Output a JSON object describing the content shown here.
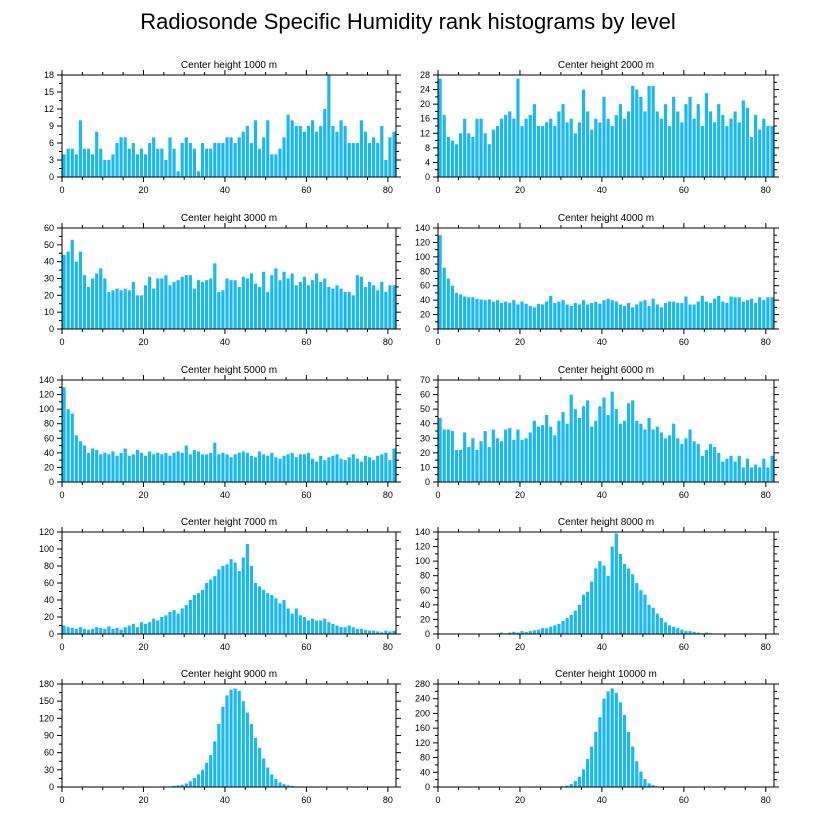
{
  "title": "Radiosonde Specific Humidity rank histograms by level",
  "colors": {
    "bar": "#1ab8f0",
    "axis": "#000000",
    "background": "#ffffff"
  },
  "chart_data": [
    {
      "type": "bar",
      "title": "Center height 1000 m",
      "xlim": [
        0,
        82
      ],
      "ylim": [
        0,
        18
      ],
      "xticks": [
        0,
        20,
        40,
        60,
        80
      ],
      "yticks": [
        0,
        3,
        6,
        9,
        12,
        15,
        18
      ],
      "values": [
        4,
        5,
        5,
        4,
        10,
        5,
        5,
        4,
        8,
        5,
        3,
        3,
        4,
        6,
        7,
        7,
        5,
        6,
        4,
        5,
        4,
        6,
        7,
        5,
        5,
        3,
        7,
        5,
        1,
        6,
        7,
        6,
        5,
        1,
        6,
        5,
        5,
        6,
        6,
        6,
        7,
        7,
        6,
        7,
        8,
        9,
        6,
        10,
        5,
        7,
        10,
        4,
        4,
        5,
        7,
        11,
        10,
        9,
        9,
        8,
        9,
        10,
        8,
        9,
        12,
        18,
        9,
        8,
        10,
        9,
        6,
        6,
        6,
        10,
        8,
        6,
        7,
        6,
        9,
        3,
        7,
        8
      ],
      "xvalues_note": "bins 0-81"
    },
    {
      "type": "bar",
      "title": "Center height 2000 m",
      "xlim": [
        0,
        82
      ],
      "ylim": [
        0,
        28
      ],
      "xticks": [
        0,
        20,
        40,
        60,
        80
      ],
      "yticks": [
        0,
        4,
        8,
        12,
        16,
        20,
        24,
        28
      ],
      "values": [
        27,
        17,
        11,
        10,
        9,
        12,
        16,
        12,
        11,
        16,
        16,
        12,
        9,
        13,
        14,
        16,
        17,
        18,
        16,
        27,
        14,
        16,
        17,
        20,
        14,
        14,
        15,
        16,
        14,
        18,
        20,
        15,
        16,
        12,
        15,
        24,
        18,
        13,
        16,
        15,
        22,
        16,
        14,
        17,
        20,
        16,
        18,
        25,
        24,
        22,
        18,
        25,
        25,
        18,
        16,
        20,
        14,
        22,
        18,
        15,
        20,
        22,
        16,
        20,
        14,
        23,
        18,
        15,
        20,
        17,
        14,
        16,
        18,
        15,
        21,
        19,
        11,
        17,
        13,
        16,
        14,
        14
      ],
      "xvalues_note": "bins 0-81"
    },
    {
      "type": "bar",
      "title": "Center height 3000 m",
      "xlim": [
        0,
        82
      ],
      "ylim": [
        0,
        60
      ],
      "xticks": [
        0,
        20,
        40,
        60,
        80
      ],
      "yticks": [
        0,
        10,
        20,
        30,
        40,
        50,
        60
      ],
      "values": [
        44,
        46,
        53,
        40,
        46,
        32,
        25,
        30,
        33,
        36,
        30,
        22,
        23,
        24,
        23,
        24,
        23,
        28,
        20,
        20,
        26,
        31,
        24,
        30,
        30,
        32,
        26,
        28,
        29,
        31,
        32,
        32,
        24,
        29,
        28,
        29,
        30,
        39,
        22,
        23,
        30,
        29,
        29,
        25,
        31,
        30,
        33,
        27,
        25,
        34,
        22,
        32,
        36,
        29,
        34,
        30,
        33,
        26,
        28,
        31,
        26,
        29,
        33,
        28,
        30,
        25,
        24,
        26,
        24,
        22,
        22,
        20,
        32,
        31,
        25,
        28,
        26,
        23,
        28,
        22,
        26,
        26
      ],
      "xvalues_note": "bins 0-81"
    },
    {
      "type": "bar",
      "title": "Center height 4000 m",
      "xlim": [
        0,
        82
      ],
      "ylim": [
        0,
        140
      ],
      "xticks": [
        0,
        20,
        40,
        60,
        80
      ],
      "yticks": [
        0,
        20,
        40,
        60,
        80,
        100,
        120,
        140
      ],
      "values": [
        130,
        85,
        70,
        60,
        50,
        48,
        45,
        44,
        44,
        42,
        41,
        40,
        41,
        38,
        40,
        36,
        38,
        36,
        40,
        34,
        38,
        35,
        32,
        30,
        35,
        34,
        38,
        46,
        36,
        38,
        40,
        34,
        32,
        36,
        34,
        40,
        34,
        36,
        38,
        35,
        40,
        42,
        40,
        38,
        34,
        32,
        36,
        30,
        34,
        38,
        40,
        32,
        42,
        34,
        30,
        36,
        38,
        38,
        36,
        36,
        45,
        34,
        34,
        38,
        46,
        38,
        36,
        42,
        46,
        38,
        36,
        45,
        44,
        44,
        38,
        40,
        42,
        36,
        44,
        40,
        44,
        44
      ],
      "xvalues_note": "bins 0-81"
    },
    {
      "type": "bar",
      "title": "Center height 5000 m",
      "xlim": [
        0,
        82
      ],
      "ylim": [
        0,
        140
      ],
      "xticks": [
        0,
        20,
        40,
        60,
        80
      ],
      "yticks": [
        0,
        20,
        40,
        60,
        80,
        100,
        120,
        140
      ],
      "values": [
        130,
        100,
        94,
        64,
        56,
        50,
        40,
        46,
        44,
        38,
        40,
        38,
        42,
        36,
        40,
        46,
        36,
        38,
        44,
        40,
        36,
        42,
        38,
        40,
        38,
        40,
        36,
        40,
        42,
        40,
        50,
        38,
        44,
        42,
        38,
        38,
        40,
        54,
        38,
        40,
        38,
        34,
        38,
        40,
        42,
        40,
        36,
        34,
        42,
        38,
        36,
        40,
        34,
        32,
        36,
        38,
        40,
        34,
        38,
        38,
        40,
        32,
        28,
        36,
        30,
        34,
        36,
        38,
        32,
        30,
        34,
        38,
        32,
        28,
        36,
        34,
        30,
        36,
        38,
        40,
        30,
        46
      ],
      "xvalues_note": "bins 0-81"
    },
    {
      "type": "bar",
      "title": "Center height 6000 m",
      "xlim": [
        0,
        82
      ],
      "ylim": [
        0,
        70
      ],
      "xticks": [
        0,
        20,
        40,
        60,
        80
      ],
      "yticks": [
        0,
        10,
        20,
        30,
        40,
        50,
        60,
        70
      ],
      "values": [
        44,
        36,
        36,
        35,
        22,
        22,
        34,
        24,
        30,
        22,
        28,
        35,
        24,
        36,
        30,
        28,
        36,
        37,
        29,
        36,
        29,
        30,
        34,
        42,
        38,
        39,
        46,
        38,
        32,
        42,
        48,
        40,
        60,
        50,
        44,
        52,
        56,
        38,
        42,
        52,
        58,
        46,
        62,
        50,
        40,
        42,
        54,
        56,
        42,
        40,
        36,
        44,
        36,
        38,
        34,
        30,
        32,
        40,
        30,
        26,
        30,
        36,
        28,
        26,
        18,
        22,
        26,
        24,
        20,
        14,
        16,
        18,
        14,
        18,
        10,
        16,
        10,
        12,
        10,
        16,
        10,
        18
      ],
      "xvalues_note": "bins 0-81"
    },
    {
      "type": "bar",
      "title": "Center height 7000 m",
      "xlim": [
        0,
        82
      ],
      "ylim": [
        0,
        120
      ],
      "xticks": [
        0,
        20,
        40,
        60,
        80
      ],
      "yticks": [
        0,
        20,
        40,
        60,
        80,
        100,
        120
      ],
      "values": [
        10,
        8,
        7,
        6,
        8,
        6,
        5,
        6,
        8,
        7,
        6,
        9,
        6,
        7,
        5,
        8,
        10,
        12,
        8,
        14,
        12,
        14,
        18,
        16,
        20,
        22,
        26,
        28,
        24,
        30,
        34,
        40,
        46,
        48,
        52,
        60,
        64,
        68,
        76,
        80,
        82,
        88,
        84,
        74,
        90,
        106,
        80,
        60,
        56,
        52,
        48,
        46,
        42,
        36,
        40,
        30,
        24,
        30,
        22,
        20,
        16,
        18,
        16,
        16,
        18,
        14,
        12,
        10,
        8,
        8,
        10,
        8,
        6,
        6,
        5,
        4,
        4,
        3,
        2,
        4,
        3,
        4
      ],
      "xvalues_note": "bins 0-81"
    },
    {
      "type": "bar",
      "title": "Center height 8000 m",
      "xlim": [
        0,
        82
      ],
      "ylim": [
        0,
        140
      ],
      "xticks": [
        0,
        20,
        40,
        60,
        80
      ],
      "yticks": [
        0,
        20,
        40,
        60,
        80,
        100,
        120,
        140
      ],
      "values": [
        0,
        0,
        0,
        0,
        0,
        0,
        0,
        0,
        0,
        0,
        0,
        0,
        0,
        0,
        1,
        2,
        1,
        2,
        3,
        2,
        4,
        3,
        4,
        5,
        6,
        8,
        8,
        10,
        12,
        14,
        18,
        22,
        26,
        32,
        40,
        54,
        58,
        72,
        90,
        100,
        94,
        80,
        120,
        138,
        110,
        96,
        90,
        82,
        70,
        60,
        54,
        40,
        36,
        28,
        22,
        16,
        12,
        10,
        8,
        6,
        4,
        4,
        3,
        2,
        1,
        2,
        1,
        0,
        0,
        0,
        0,
        0,
        0,
        0,
        0,
        0,
        0,
        0,
        0,
        0,
        0,
        0
      ],
      "xvalues_note": "bins 0-81"
    },
    {
      "type": "bar",
      "title": "Center height 9000 m",
      "xlim": [
        0,
        82
      ],
      "ylim": [
        0,
        180
      ],
      "xticks": [
        0,
        20,
        40,
        60,
        80
      ],
      "yticks": [
        0,
        30,
        60,
        90,
        120,
        150,
        180
      ],
      "values": [
        0,
        0,
        0,
        0,
        0,
        0,
        0,
        0,
        0,
        0,
        0,
        0,
        0,
        0,
        0,
        0,
        0,
        0,
        0,
        0,
        0,
        0,
        0,
        0,
        0,
        1,
        1,
        2,
        3,
        4,
        6,
        10,
        16,
        22,
        30,
        42,
        56,
        80,
        110,
        140,
        160,
        170,
        172,
        168,
        150,
        130,
        110,
        86,
        68,
        50,
        34,
        22,
        14,
        8,
        5,
        3,
        2,
        1,
        1,
        0,
        0,
        0,
        0,
        0,
        0,
        0,
        0,
        0,
        0,
        0,
        0,
        0,
        0,
        0,
        0,
        0,
        0,
        0,
        0,
        0,
        0,
        0
      ],
      "xvalues_note": "bins 0-81"
    },
    {
      "type": "bar",
      "title": "Center height 10000 m",
      "xlim": [
        0,
        82
      ],
      "ylim": [
        0,
        280
      ],
      "xticks": [
        0,
        20,
        40,
        60,
        80
      ],
      "yticks": [
        0,
        40,
        80,
        120,
        160,
        200,
        240,
        280
      ],
      "values": [
        0,
        0,
        0,
        0,
        0,
        0,
        0,
        0,
        0,
        0,
        0,
        0,
        0,
        0,
        0,
        0,
        0,
        0,
        0,
        0,
        0,
        0,
        0,
        0,
        0,
        0,
        0,
        0,
        0,
        0,
        2,
        4,
        8,
        16,
        28,
        48,
        76,
        110,
        150,
        190,
        240,
        260,
        268,
        256,
        230,
        196,
        150,
        110,
        70,
        42,
        22,
        10,
        5,
        2,
        1,
        1,
        0,
        0,
        0,
        0,
        0,
        0,
        0,
        0,
        0,
        0,
        0,
        0,
        0,
        0,
        0,
        0,
        0,
        0,
        0,
        0,
        0,
        0,
        0,
        0,
        0,
        0
      ],
      "xvalues_note": "bins 0-81"
    }
  ]
}
